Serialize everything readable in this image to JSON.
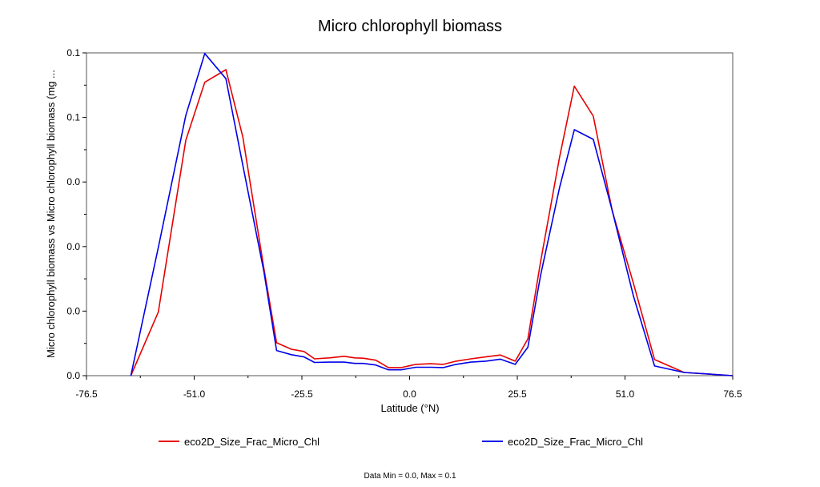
{
  "chart_data": {
    "type": "line",
    "title": "Micro chlorophyll biomass",
    "xlabel": "Latitude (°N)",
    "ylabel": "Micro chlorophyll biomass vs Micro chlorophyll biomass (mg ...",
    "xlim": [
      -76.5,
      76.5
    ],
    "ylim": [
      0.0,
      0.1
    ],
    "xticks": [
      -76.5,
      -51.0,
      -25.5,
      0.0,
      25.5,
      51.0,
      76.5
    ],
    "xtick_labels": [
      "-76.5",
      "-51.0",
      "-25.5",
      "0.0",
      "25.5",
      "51.0",
      "76.5"
    ],
    "yticks": [
      0.0,
      0.02,
      0.04,
      0.06,
      0.08,
      0.1
    ],
    "ytick_labels": [
      "0.0",
      "0.0",
      "0.0",
      "0.0",
      "0.1",
      "0.1"
    ],
    "grid": false,
    "legend": "bottom",
    "x": [
      -66.0,
      -59.5,
      -53.0,
      -48.5,
      -43.5,
      -39.5,
      -34.5,
      -31.5,
      -28.0,
      -25.0,
      -22.5,
      -19.0,
      -15.5,
      -13.0,
      -11.0,
      -8.0,
      -5.0,
      -2.0,
      1.5,
      5.0,
      8.0,
      11.0,
      14.5,
      18.0,
      21.5,
      25.0,
      28.0,
      31.0,
      35.5,
      39.0,
      43.5,
      48.0,
      53.0,
      58.0,
      65.0,
      76.5
    ],
    "series": [
      {
        "name": "eco2D_Size_Frac_Micro_Chl",
        "color": "#e80000",
        "values": [
          0.0,
          0.0197,
          0.0729,
          0.0909,
          0.0948,
          0.074,
          0.0333,
          0.0102,
          0.0082,
          0.0075,
          0.0052,
          0.0055,
          0.006,
          0.0055,
          0.0054,
          0.0048,
          0.0025,
          0.0025,
          0.0035,
          0.0037,
          0.0035,
          0.0045,
          0.0052,
          0.0058,
          0.0064,
          0.0045,
          0.0114,
          0.0352,
          0.0676,
          0.0897,
          0.0804,
          0.0509,
          0.0286,
          0.005,
          0.001,
          0.0
        ]
      },
      {
        "name": "eco2D_Size_Frac_Micro_Chl",
        "color": "#0000e8",
        "values": [
          0.0,
          0.0397,
          0.0806,
          0.0998,
          0.092,
          0.0652,
          0.0323,
          0.0078,
          0.0065,
          0.0058,
          0.0041,
          0.0042,
          0.0042,
          0.0038,
          0.0038,
          0.0033,
          0.0018,
          0.0018,
          0.0026,
          0.0026,
          0.0025,
          0.0035,
          0.0042,
          0.0045,
          0.0051,
          0.0035,
          0.0088,
          0.031,
          0.0582,
          0.0762,
          0.0732,
          0.051,
          0.0247,
          0.003,
          0.001,
          0.0
        ]
      }
    ]
  },
  "footer": {
    "text": "Data Min = 0.0, Max = 0.1"
  }
}
